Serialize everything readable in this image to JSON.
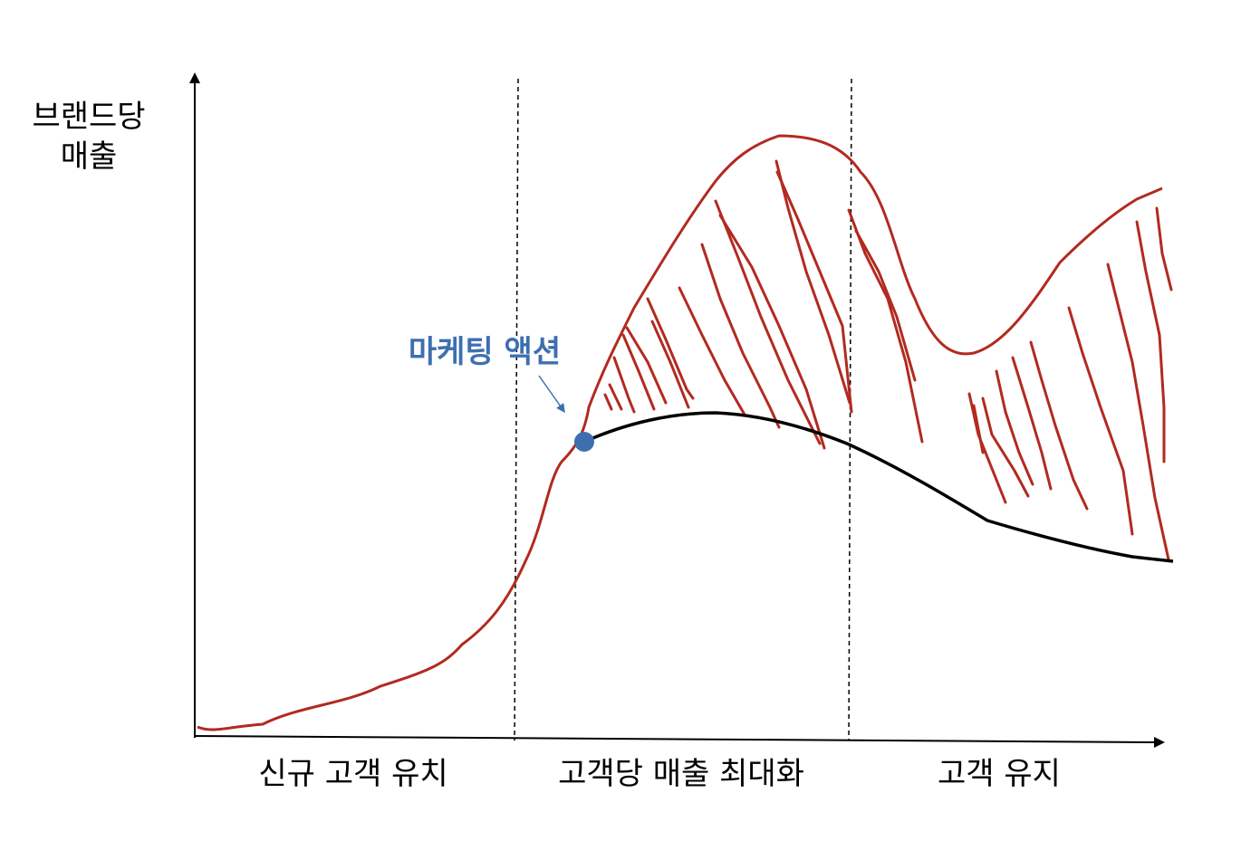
{
  "diagram": {
    "y_axis_label": [
      "브랜드당",
      "매출"
    ],
    "phases": [
      "신규 고객 유치",
      "고객당 매출 최대화",
      "고객 유지"
    ],
    "callout": "마케팅 액션",
    "colors": {
      "axis": "#000000",
      "with_marketing_curve": "#b22a20",
      "baseline_curve": "#000000",
      "marker": "#3d6fb0",
      "callout_text": "#3d6fb0"
    }
  }
}
